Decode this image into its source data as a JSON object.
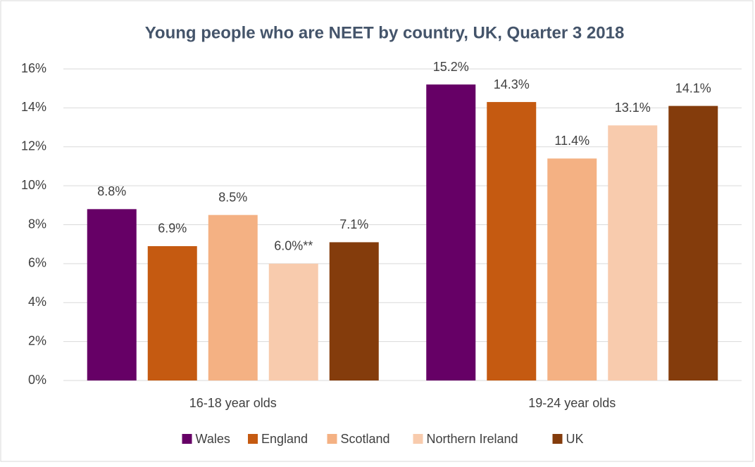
{
  "chart_data": {
    "type": "bar",
    "title": "Young people who are NEET by country, UK, Quarter 3 2018",
    "categories": [
      "16-18 year olds",
      "19-24 year olds"
    ],
    "series": [
      {
        "name": "Wales",
        "color": "#660066",
        "values": [
          8.8,
          15.2
        ],
        "value_labels": [
          "8.8%",
          "15.2%"
        ]
      },
      {
        "name": "England",
        "color": "#c55a11",
        "values": [
          6.9,
          14.3
        ],
        "value_labels": [
          "6.9%",
          "14.3%"
        ]
      },
      {
        "name": "Scotland",
        "color": "#f4b183",
        "values": [
          8.5,
          11.4
        ],
        "value_labels": [
          "8.5%",
          "11.4%"
        ]
      },
      {
        "name": "Northern Ireland",
        "color": "#f8cbad",
        "values": [
          6.0,
          13.1
        ],
        "value_labels": [
          "6.0%**",
          "13.1%"
        ]
      },
      {
        "name": "UK",
        "color": "#843c0c",
        "values": [
          7.1,
          14.1
        ],
        "value_labels": [
          "7.1%",
          "14.1%"
        ]
      }
    ],
    "ylim": [
      0,
      16
    ],
    "yticks": [
      {
        "value": 0,
        "label": "0%"
      },
      {
        "value": 2,
        "label": "2%"
      },
      {
        "value": 4,
        "label": "4%"
      },
      {
        "value": 6,
        "label": "6%"
      },
      {
        "value": 8,
        "label": "8%"
      },
      {
        "value": 10,
        "label": "10%"
      },
      {
        "value": 12,
        "label": "12%"
      },
      {
        "value": 14,
        "label": "14%"
      },
      {
        "value": 16,
        "label": "16%"
      }
    ],
    "grid": true,
    "legend": "bottom"
  }
}
